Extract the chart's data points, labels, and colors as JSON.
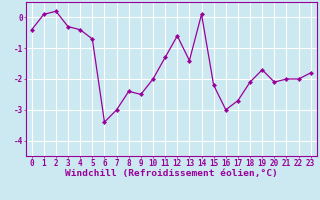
{
  "x": [
    0,
    1,
    2,
    3,
    4,
    5,
    6,
    7,
    8,
    9,
    10,
    11,
    12,
    13,
    14,
    15,
    16,
    17,
    18,
    19,
    20,
    21,
    22,
    23
  ],
  "y": [
    -0.4,
    0.1,
    0.2,
    -0.3,
    -0.4,
    -0.7,
    -3.4,
    -3.0,
    -2.4,
    -2.5,
    -2.0,
    -1.3,
    -0.6,
    -1.4,
    0.1,
    -2.2,
    -3.0,
    -2.7,
    -2.1,
    -1.7,
    -2.1,
    -2.0,
    -2.0,
    -1.8
  ],
  "line_color": "#990099",
  "marker": "D",
  "marker_size": 2.2,
  "bg_color": "#cce8f0",
  "grid_color": "#ffffff",
  "xlabel": "Windchill (Refroidissement éolien,°C)",
  "xlim": [
    -0.5,
    23.5
  ],
  "ylim": [
    -4.5,
    0.5
  ],
  "yticks": [
    0,
    -1,
    -2,
    -3,
    -4
  ],
  "xticks": [
    0,
    1,
    2,
    3,
    4,
    5,
    6,
    7,
    8,
    9,
    10,
    11,
    12,
    13,
    14,
    15,
    16,
    17,
    18,
    19,
    20,
    21,
    22,
    23
  ],
  "tick_fontsize": 5.5,
  "xlabel_fontsize": 6.8
}
